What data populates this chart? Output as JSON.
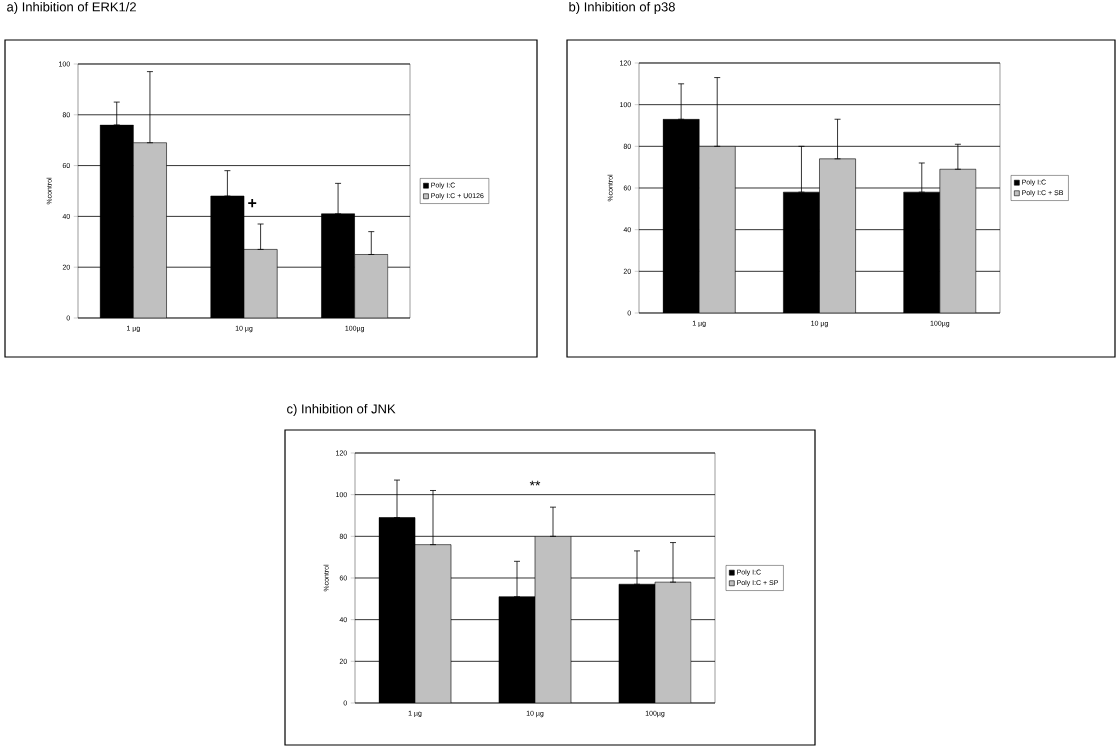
{
  "chart_data": [
    {
      "type": "bar",
      "title": "a) Inhibition of ERK1/2",
      "ylabel": "%control",
      "categories": [
        "1 µg",
        "10 µg",
        "100µg"
      ],
      "ylim": [
        0,
        100
      ],
      "yticks": [
        0,
        20,
        40,
        60,
        80,
        100
      ],
      "grid": "y",
      "legend": "right",
      "series": [
        {
          "name": "Poly I:C",
          "color": "#000000",
          "values": [
            76,
            48,
            41
          ],
          "errors": [
            [
              76,
              85
            ],
            [
              48,
              58
            ],
            [
              41,
              53
            ]
          ]
        },
        {
          "name": "Poly I:C + U0126",
          "color": "#c0c0c0",
          "values": [
            69,
            27,
            25
          ],
          "errors": [
            [
              69,
              97
            ],
            [
              27,
              37
            ],
            [
              25,
              34
            ]
          ]
        }
      ],
      "annotations": [
        {
          "text": "+",
          "x": "10 µg",
          "y": 45
        }
      ]
    },
    {
      "type": "bar",
      "title": "b) Inhibition of p38",
      "ylabel": "%control",
      "categories": [
        "1 µg",
        "10 µg",
        "100µg"
      ],
      "ylim": [
        0,
        120
      ],
      "yticks": [
        0,
        20,
        40,
        60,
        80,
        100,
        120
      ],
      "grid": "y",
      "legend": "right",
      "series": [
        {
          "name": "Poly I:C",
          "color": "#000000",
          "values": [
            93,
            58,
            58
          ],
          "errors": [
            [
              93,
              110
            ],
            [
              58,
              80
            ],
            [
              58,
              72
            ]
          ]
        },
        {
          "name": "Poly I:C + SB",
          "color": "#c0c0c0",
          "values": [
            80,
            74,
            69
          ],
          "errors": [
            [
              80,
              113
            ],
            [
              74,
              93
            ],
            [
              69,
              81
            ]
          ]
        }
      ]
    },
    {
      "type": "bar",
      "title": "c) Inhibition of JNK",
      "ylabel": "%control",
      "categories": [
        "1 µg",
        "10 µg",
        "100µg"
      ],
      "ylim": [
        0,
        120
      ],
      "yticks": [
        0,
        20,
        40,
        60,
        80,
        100,
        120
      ],
      "grid": "y",
      "legend": "right",
      "series": [
        {
          "name": "Poly I:C",
          "color": "#000000",
          "values": [
            89,
            51,
            57
          ],
          "errors": [
            [
              89,
              107
            ],
            [
              51,
              68
            ],
            [
              57,
              73
            ]
          ]
        },
        {
          "name": "Poly I:C + SP",
          "color": "#c0c0c0",
          "values": [
            76,
            80,
            58
          ],
          "errors": [
            [
              76,
              102
            ],
            [
              80,
              94
            ],
            [
              58,
              77
            ]
          ]
        }
      ],
      "annotations": [
        "**"
      ]
    }
  ]
}
